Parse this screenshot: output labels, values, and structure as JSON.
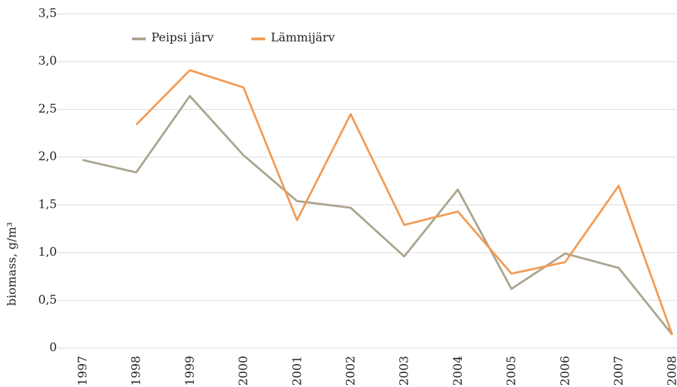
{
  "chart_data": {
    "type": "line",
    "categories": [
      "1997",
      "1998",
      "1999",
      "2000",
      "2001",
      "2002",
      "2003",
      "2004",
      "2005",
      "2006",
      "2007",
      "2008"
    ],
    "series": [
      {
        "name": "Peipsi järv",
        "color": "#aba58f",
        "values": [
          1.97,
          1.84,
          2.64,
          2.02,
          1.54,
          1.47,
          0.96,
          1.66,
          0.62,
          0.99,
          0.84,
          0.14
        ]
      },
      {
        "name": "Lämmijärv",
        "color": "#f39c55",
        "values": [
          null,
          2.34,
          2.91,
          2.73,
          1.34,
          2.45,
          1.29,
          1.43,
          0.78,
          0.9,
          1.7,
          0.14
        ]
      }
    ],
    "y_label": "biomass, g/m³",
    "ylim": [
      0,
      3.5
    ],
    "yticks": [
      0,
      {
        "value": 0.5,
        "label": "0,5"
      },
      {
        "value": 1,
        "label": "1,0"
      },
      {
        "value": 1.5,
        "label": "1,5"
      },
      {
        "value": 2,
        "label": "2,0"
      },
      {
        "value": 2.5,
        "label": "2,5"
      },
      {
        "value": 3,
        "label": "3,0"
      },
      {
        "value": 3.5,
        "label": "3,5"
      }
    ],
    "grid": true,
    "legend": "top"
  }
}
